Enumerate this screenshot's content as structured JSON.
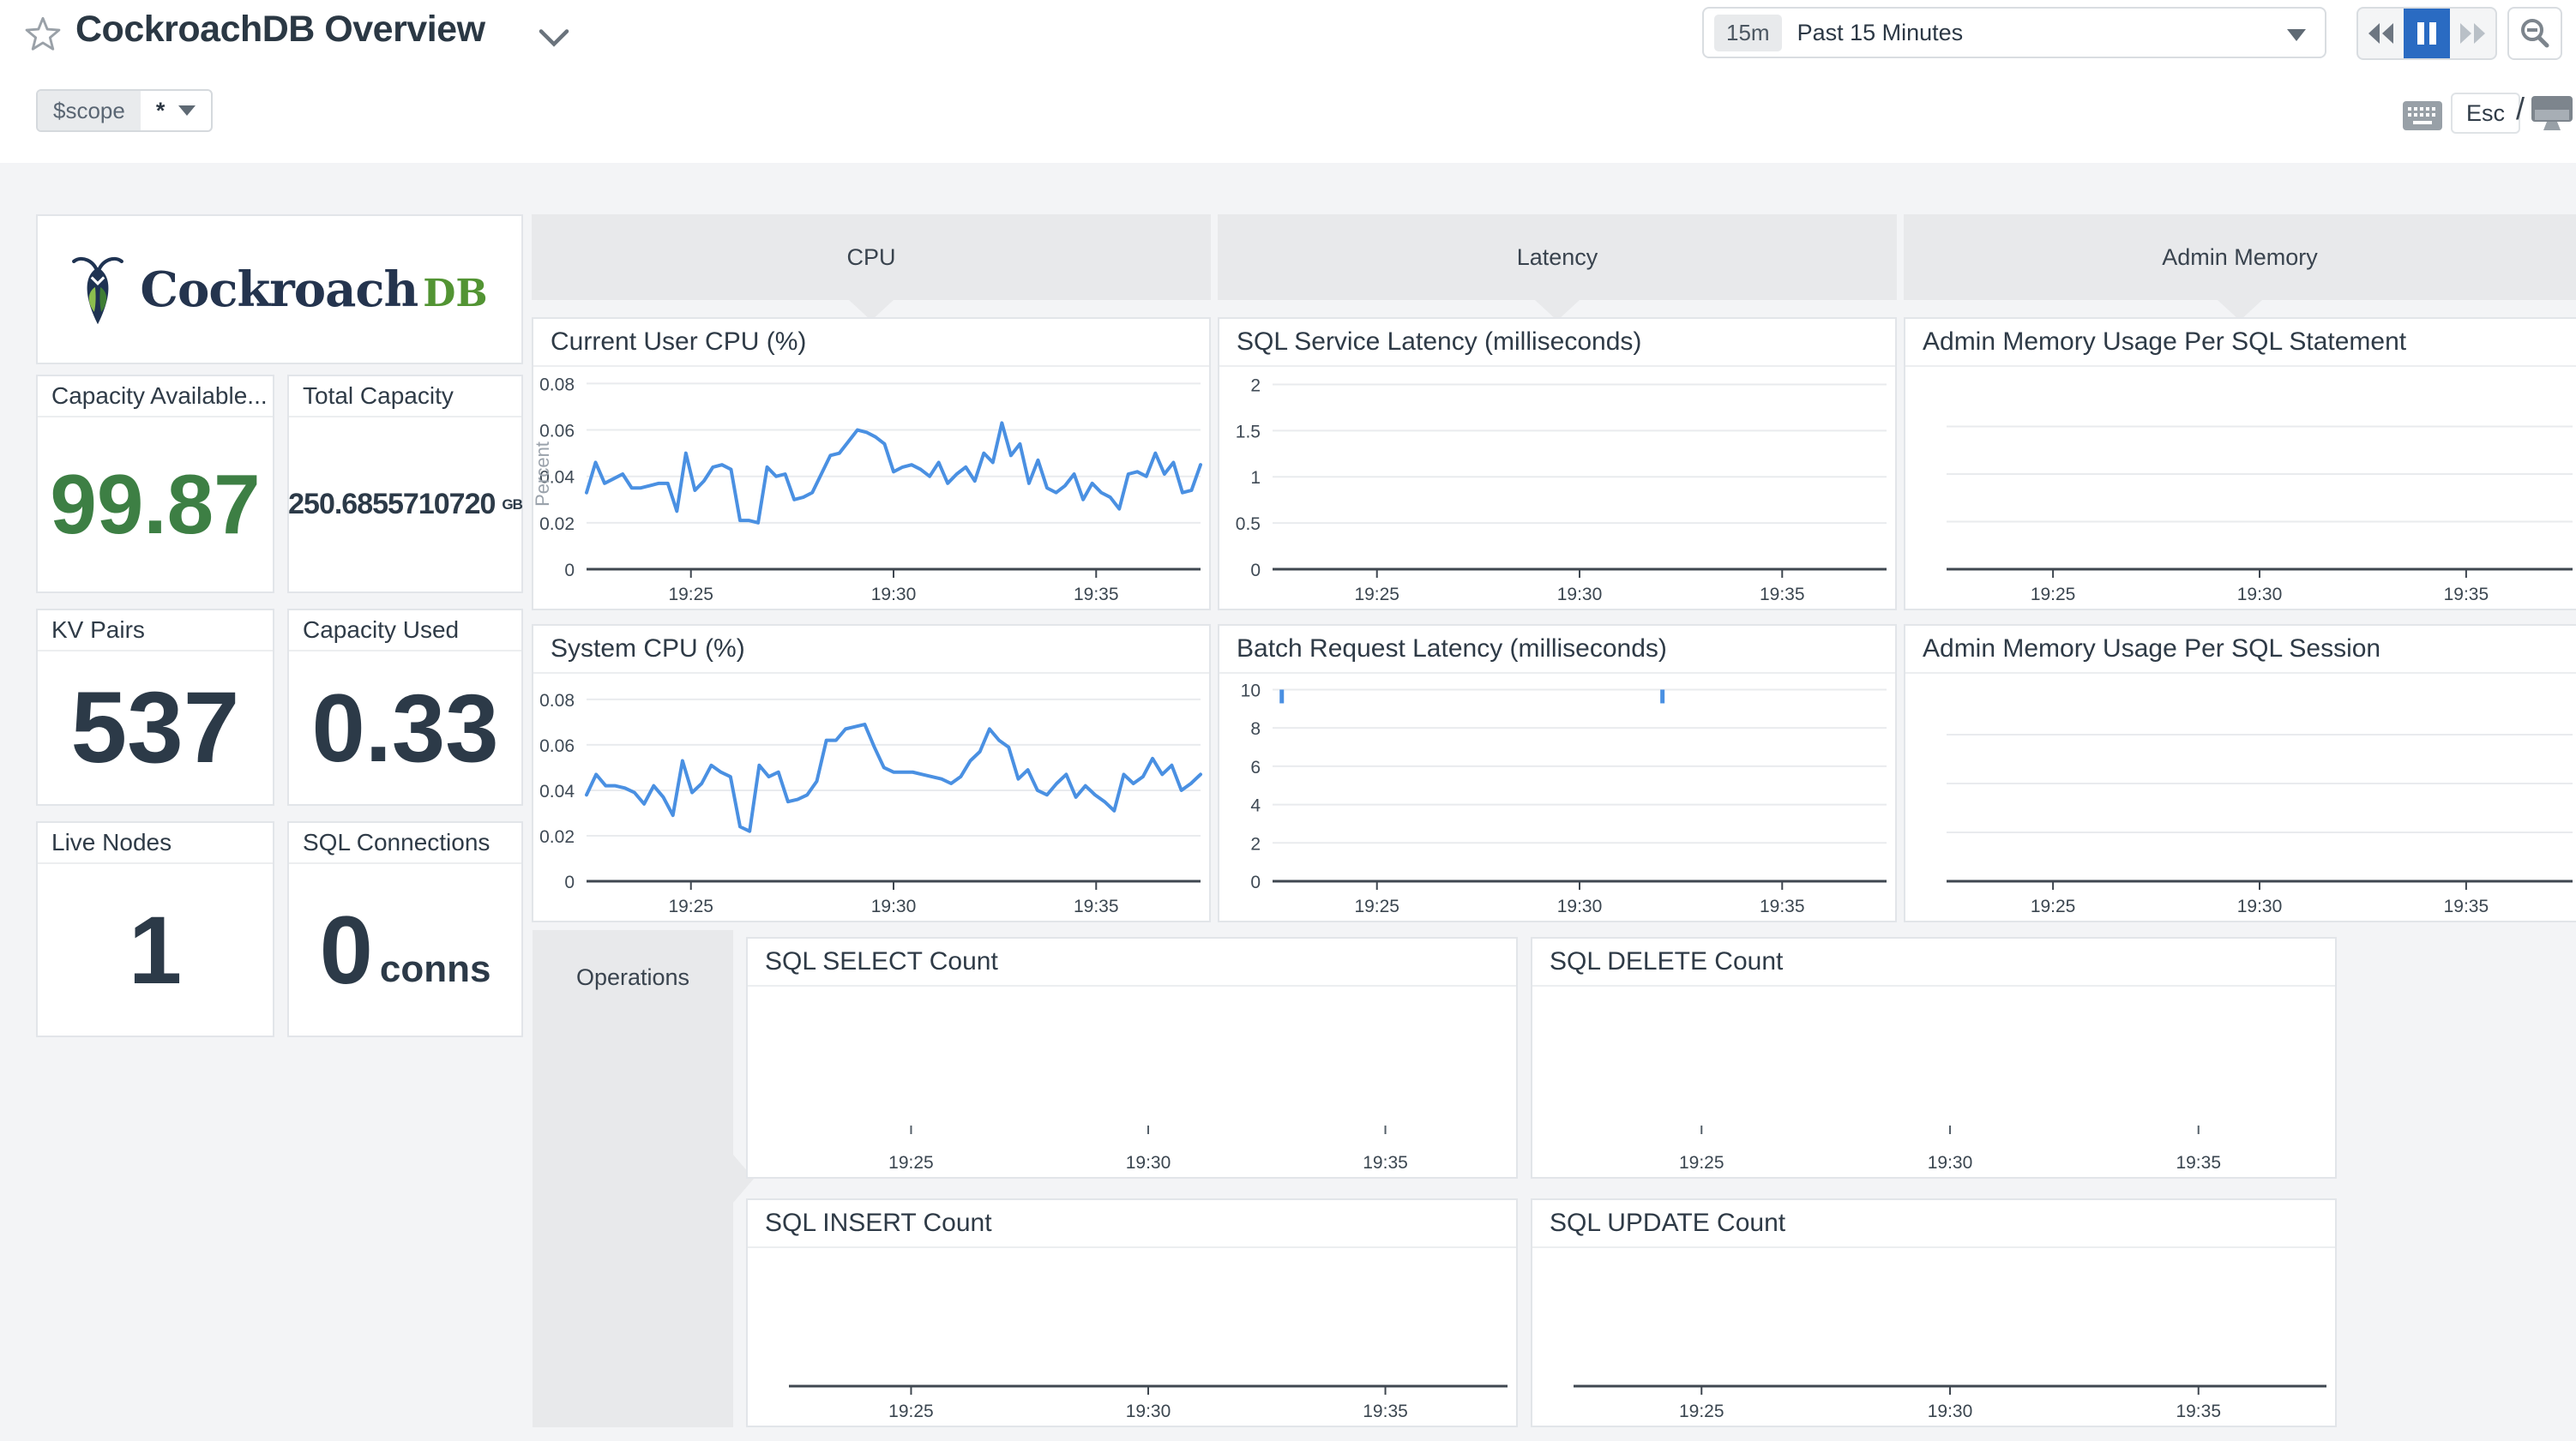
{
  "header": {
    "title": "CockroachDB Overview",
    "time_picker": {
      "badge": "15m",
      "label": "Past 15 Minutes"
    },
    "shortcut_keys": {
      "esc": "Esc",
      "separator": "/"
    }
  },
  "template_vars": {
    "name": "$scope",
    "value": "*"
  },
  "logo": {
    "brand": "Cockroach",
    "suffix": "DB"
  },
  "colors": {
    "accent_blue": "#2a6bc2",
    "chart_line_blue": "#4a90e2",
    "stat_green": "#3d7f44",
    "logo_navy": "#1f3352",
    "logo_green": "#529433"
  },
  "stats": [
    {
      "title": "Capacity Available...",
      "value": "99.87",
      "unit": ""
    },
    {
      "title": "Total Capacity",
      "value": "250.6855710720",
      "unit": "GB"
    },
    {
      "title": "KV Pairs",
      "value": "537",
      "unit": ""
    },
    {
      "title": "Capacity Used",
      "value": "0.33",
      "unit": ""
    },
    {
      "title": "Live Nodes",
      "value": "1",
      "unit": ""
    },
    {
      "title": "SQL Connections",
      "value": "0",
      "unit": "conns"
    }
  ],
  "groups": [
    {
      "label": "CPU"
    },
    {
      "label": "Latency"
    },
    {
      "label": "Admin Memory"
    },
    {
      "label": "Operations"
    }
  ],
  "chart_data": [
    {
      "type": "line",
      "title": "Current User CPU (%)",
      "ylabel": "Percent",
      "ylim": [
        0,
        0.082
      ],
      "yticks": [
        0,
        0.02,
        0.04,
        0.06,
        0.08
      ],
      "ytick_labels": [
        "0",
        "0.02",
        "0.04",
        "0.06",
        "0.08"
      ],
      "xticks": [
        {
          "pos": 0.17,
          "label": "19:25"
        },
        {
          "pos": 0.5,
          "label": "19:30"
        },
        {
          "pos": 0.83,
          "label": "19:35"
        }
      ],
      "axis_line": true,
      "grid": true,
      "line_color": "#4a90e2",
      "values": [
        0.033,
        0.046,
        0.037,
        0.039,
        0.041,
        0.035,
        0.035,
        0.036,
        0.037,
        0.037,
        0.025,
        0.05,
        0.034,
        0.038,
        0.044,
        0.045,
        0.043,
        0.021,
        0.021,
        0.02,
        0.044,
        0.04,
        0.041,
        0.03,
        0.031,
        0.033,
        0.041,
        0.049,
        0.05,
        0.055,
        0.06,
        0.059,
        0.057,
        0.054,
        0.042,
        0.044,
        0.045,
        0.043,
        0.04,
        0.046,
        0.037,
        0.041,
        0.044,
        0.038,
        0.05,
        0.046,
        0.063,
        0.049,
        0.054,
        0.037,
        0.047,
        0.035,
        0.033,
        0.036,
        0.041,
        0.03,
        0.037,
        0.033,
        0.031,
        0.026,
        0.041,
        0.042,
        0.04,
        0.05,
        0.041,
        0.046,
        0.033,
        0.034,
        0.045
      ]
    },
    {
      "type": "line",
      "title": "System CPU (%)",
      "ylim": [
        0,
        0.086
      ],
      "yticks": [
        0,
        0.02,
        0.04,
        0.06,
        0.08
      ],
      "ytick_labels": [
        "0",
        "0.02",
        "0.04",
        "0.06",
        "0.08"
      ],
      "xticks": [
        {
          "pos": 0.17,
          "label": "19:25"
        },
        {
          "pos": 0.5,
          "label": "19:30"
        },
        {
          "pos": 0.83,
          "label": "19:35"
        }
      ],
      "axis_line": true,
      "grid": true,
      "line_color": "#4a90e2",
      "values": [
        0.038,
        0.047,
        0.042,
        0.042,
        0.041,
        0.039,
        0.034,
        0.042,
        0.037,
        0.029,
        0.053,
        0.039,
        0.043,
        0.051,
        0.048,
        0.046,
        0.024,
        0.022,
        0.051,
        0.046,
        0.048,
        0.035,
        0.036,
        0.038,
        0.044,
        0.062,
        0.062,
        0.067,
        0.068,
        0.069,
        0.059,
        0.05,
        0.048,
        0.048,
        0.048,
        0.047,
        0.046,
        0.045,
        0.043,
        0.046,
        0.053,
        0.057,
        0.067,
        0.062,
        0.059,
        0.045,
        0.049,
        0.04,
        0.038,
        0.043,
        0.047,
        0.037,
        0.042,
        0.038,
        0.035,
        0.031,
        0.047,
        0.043,
        0.046,
        0.054,
        0.047,
        0.051,
        0.04,
        0.043,
        0.047
      ]
    },
    {
      "type": "line",
      "title": "SQL Service Latency (milliseconds)",
      "ylim": [
        0,
        2.06
      ],
      "yticks": [
        0,
        0.5,
        1,
        1.5,
        2
      ],
      "ytick_labels": [
        "0",
        "0.5",
        "1",
        "1.5",
        "2"
      ],
      "xticks": [
        {
          "pos": 0.17,
          "label": "19:25"
        },
        {
          "pos": 0.5,
          "label": "19:30"
        },
        {
          "pos": 0.83,
          "label": "19:35"
        }
      ],
      "axis_line": true,
      "grid": true,
      "line_color": "#4a90e2",
      "values": []
    },
    {
      "type": "line",
      "title": "Batch Request Latency (milliseconds)",
      "ylim": [
        0,
        10.2
      ],
      "yticks": [
        0,
        2,
        4,
        6,
        8,
        10
      ],
      "ytick_labels": [
        "0",
        "2",
        "4",
        "6",
        "8",
        "10"
      ],
      "xticks": [
        {
          "pos": 0.17,
          "label": "19:25"
        },
        {
          "pos": 0.5,
          "label": "19:30"
        },
        {
          "pos": 0.83,
          "label": "19:35"
        }
      ],
      "axis_line": true,
      "grid": true,
      "line_color": "#4a90e2",
      "values": [],
      "spikes": [
        {
          "x": 0.015,
          "y": 10
        },
        {
          "x": 0.635,
          "y": 10
        }
      ]
    },
    {
      "type": "line",
      "title": "Admin Memory Usage Per SQL Statement",
      "ylim": [
        0,
        4
      ],
      "yticks": [
        1,
        2,
        3
      ],
      "ytick_labels": null,
      "xticks": [
        {
          "pos": 0.17,
          "label": "19:25"
        },
        {
          "pos": 0.5,
          "label": "19:30"
        },
        {
          "pos": 0.83,
          "label": "19:35"
        }
      ],
      "axis_line": true,
      "grid": true,
      "line_color": "#4a90e2",
      "values": []
    },
    {
      "type": "line",
      "title": "Admin Memory Usage Per SQL Session",
      "ylim": [
        0,
        4
      ],
      "yticks": [
        1,
        2,
        3
      ],
      "ytick_labels": null,
      "xticks": [
        {
          "pos": 0.17,
          "label": "19:25"
        },
        {
          "pos": 0.5,
          "label": "19:30"
        },
        {
          "pos": 0.83,
          "label": "19:35"
        }
      ],
      "axis_line": true,
      "grid": true,
      "line_color": "#4a90e2",
      "values": []
    },
    {
      "type": "line",
      "title": "SQL SELECT Count",
      "ylim": [
        0,
        1
      ],
      "yticks": [],
      "ytick_labels": null,
      "xticks": [
        {
          "pos": 0.17,
          "label": "19:25"
        },
        {
          "pos": 0.5,
          "label": "19:30"
        },
        {
          "pos": 0.83,
          "label": "19:35"
        }
      ],
      "axis_line": false,
      "grid": false,
      "line_color": "#4a90e2",
      "values": []
    },
    {
      "type": "line",
      "title": "SQL DELETE Count",
      "ylim": [
        0,
        1
      ],
      "yticks": [],
      "ytick_labels": null,
      "xticks": [
        {
          "pos": 0.17,
          "label": "19:25"
        },
        {
          "pos": 0.5,
          "label": "19:30"
        },
        {
          "pos": 0.83,
          "label": "19:35"
        }
      ],
      "axis_line": false,
      "grid": false,
      "line_color": "#4a90e2",
      "values": []
    },
    {
      "type": "line",
      "title": "SQL INSERT Count",
      "ylim": [
        0,
        1
      ],
      "yticks": [],
      "ytick_labels": null,
      "xticks": [
        {
          "pos": 0.17,
          "label": "19:25"
        },
        {
          "pos": 0.5,
          "label": "19:30"
        },
        {
          "pos": 0.83,
          "label": "19:35"
        }
      ],
      "axis_line": true,
      "grid": false,
      "line_color": "#4a90e2",
      "values": []
    },
    {
      "type": "line",
      "title": "SQL UPDATE Count",
      "ylim": [
        0,
        1
      ],
      "yticks": [],
      "ytick_labels": null,
      "xticks": [
        {
          "pos": 0.17,
          "label": "19:25"
        },
        {
          "pos": 0.5,
          "label": "19:30"
        },
        {
          "pos": 0.83,
          "label": "19:35"
        }
      ],
      "axis_line": true,
      "grid": false,
      "line_color": "#4a90e2",
      "values": []
    }
  ]
}
